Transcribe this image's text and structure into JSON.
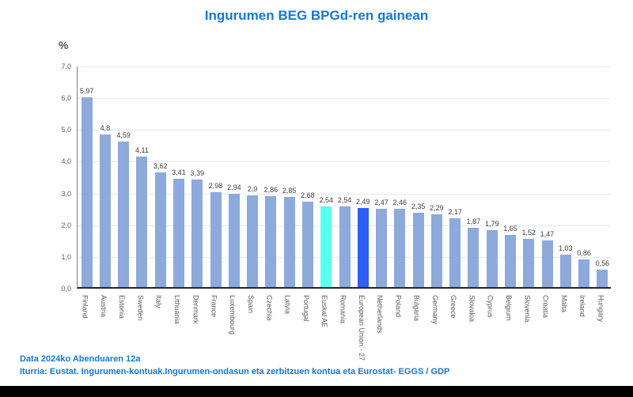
{
  "title": "Ingurumen BEG BPGd-ren gainean",
  "footer": {
    "line1": "Data 2024ko Abenduaren 12a",
    "line2": "Iturria: Eustat. Ingurumen-kontuak.Ingurumen-ondasun eta zerbitzuen kontua eta Eurostat- EGGS / GDP"
  },
  "colors": {
    "title_blue": "#1478d2",
    "bar_default": "#8EA9DB",
    "bar_euskal_ae": "#5FFFF0",
    "bar_eu27": "#2E5FF2",
    "gridline": "#deebf7"
  },
  "chart_data": {
    "type": "bar",
    "title": "Ingurumen BEG BPGd-ren gainean",
    "xlabel": "",
    "ylabel": "%",
    "ylim": [
      0,
      7
    ],
    "grid": true,
    "legend": false,
    "y_ticks": [
      "7,0",
      "6,0",
      "5,0",
      "4,0",
      "3,0",
      "2,0",
      "1,0",
      "0,0"
    ],
    "categories": [
      "Finland",
      "Austria",
      "Estonia",
      "Sweden",
      "Italy",
      "Lithuania",
      "Denmark",
      "France",
      "Luxembourg",
      "Spain",
      "Czechia",
      "Latvia",
      "Portugal",
      "Euskal AE",
      "Romania",
      "European Union - 27",
      "Netherlands",
      "Poland",
      "Bulgaria",
      "Germany",
      "Greece",
      "Slovakia",
      "Cyprus",
      "Belgium",
      "Slovenia",
      "Croatia",
      "Malta",
      "Ireland",
      "Hungary"
    ],
    "values": [
      5.97,
      4.8,
      4.59,
      4.11,
      3.62,
      3.41,
      3.39,
      2.98,
      2.94,
      2.9,
      2.86,
      2.85,
      2.68,
      2.54,
      2.54,
      2.49,
      2.47,
      2.46,
      2.35,
      2.29,
      2.17,
      1.87,
      1.79,
      1.65,
      1.52,
      1.47,
      1.03,
      0.86,
      0.56
    ],
    "value_labels": [
      "5,97",
      "4,8",
      "4,59",
      "4,11",
      "3,62",
      "3,41",
      "3,39",
      "2,98",
      "2,94",
      "2,9",
      "2,86",
      "2,85",
      "2,68",
      "2,54",
      "2,54",
      "2,49",
      "2,47",
      "2,46",
      "2,35",
      "2,29",
      "2,17",
      "1,87",
      "1,79",
      "1,65",
      "1,52",
      "1,47",
      "1,03",
      "0,86",
      "0,56"
    ],
    "bar_colors": [
      "#8EA9DB",
      "#8EA9DB",
      "#8EA9DB",
      "#8EA9DB",
      "#8EA9DB",
      "#8EA9DB",
      "#8EA9DB",
      "#8EA9DB",
      "#8EA9DB",
      "#8EA9DB",
      "#8EA9DB",
      "#8EA9DB",
      "#8EA9DB",
      "#5FFFF0",
      "#8EA9DB",
      "#2E5FF2",
      "#8EA9DB",
      "#8EA9DB",
      "#8EA9DB",
      "#8EA9DB",
      "#8EA9DB",
      "#8EA9DB",
      "#8EA9DB",
      "#8EA9DB",
      "#8EA9DB",
      "#8EA9DB",
      "#8EA9DB",
      "#8EA9DB",
      "#8EA9DB"
    ]
  }
}
